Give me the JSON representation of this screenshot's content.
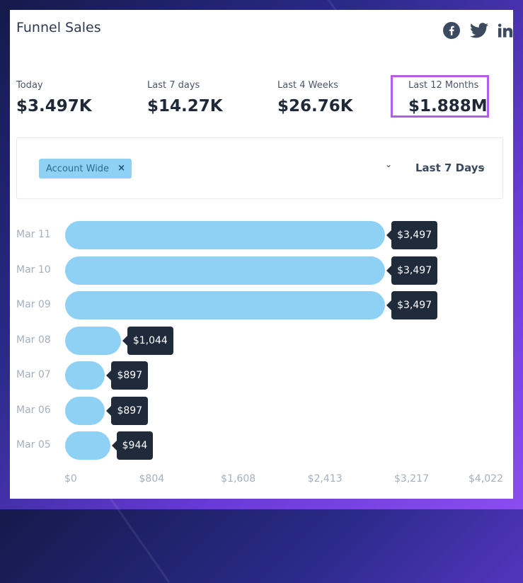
{
  "widget": {
    "title": "Funnel Sales"
  },
  "social": [
    {
      "name": "facebook-icon",
      "color": "#3b4a5e"
    },
    {
      "name": "twitter-icon",
      "color": "#3b4a5e"
    },
    {
      "name": "linkedin-icon",
      "color": "#3b4a5e"
    }
  ],
  "stats": [
    {
      "label": "Today",
      "value": "$3.497K"
    },
    {
      "label": "Last 7 days",
      "value": "$14.27K"
    },
    {
      "label": "Last 4 Weeks",
      "value": "$26.76K"
    },
    {
      "label": "Last 12 Months",
      "value": "$1.888M",
      "highlighted": true
    }
  ],
  "filters": {
    "tag": "Account Wide",
    "tag_remove": "×",
    "dropdown_caret": "⌄",
    "period": "Last 7 Days",
    "period_caret": "⌄"
  },
  "chart_data": {
    "type": "bar",
    "orientation": "horizontal",
    "categories": [
      "Mar 11",
      "Mar 10",
      "Mar 09",
      "Mar 08",
      "Mar 07",
      "Mar 06",
      "Mar 05"
    ],
    "values": [
      3497,
      3497,
      3497,
      1044,
      897,
      897,
      944
    ],
    "value_labels": [
      "$3,497",
      "$3,497",
      "$3,497",
      "$1,044",
      "$897",
      "$897",
      "$944"
    ],
    "xlim": [
      0,
      4022
    ],
    "x_ticks": [
      "$0",
      "$804",
      "$1,608",
      "$2,413",
      "$3,217",
      "$4,022"
    ],
    "x_tick_values": [
      0,
      804,
      1608,
      2413,
      3217,
      4022
    ],
    "bar_color": "#8fd1f4",
    "label_color": "#1f2b3a"
  }
}
